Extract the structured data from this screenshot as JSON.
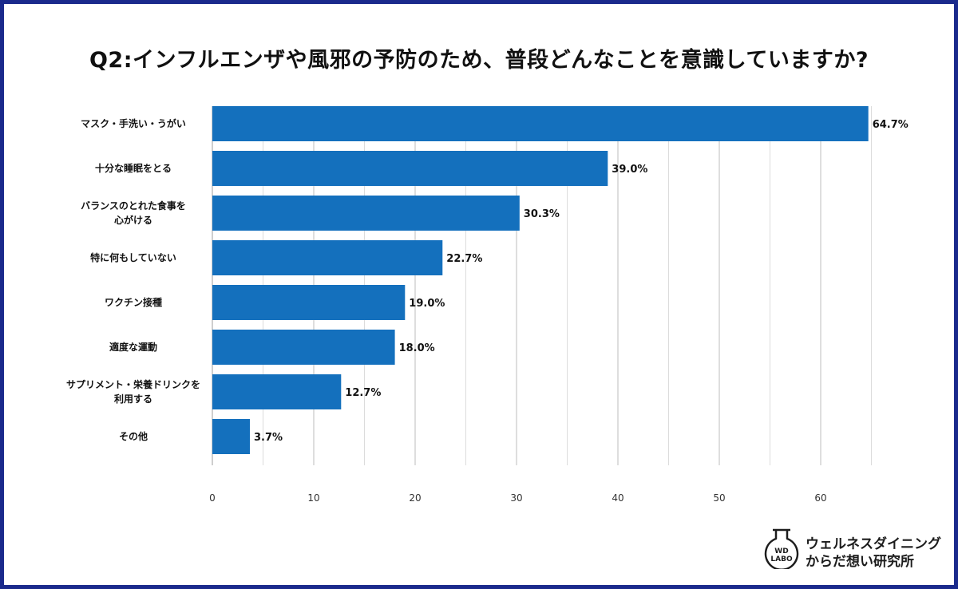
{
  "title": "Q2:インフルエンザや風邪の予防のため、普段どんなことを意識していますか?",
  "chart_data": {
    "type": "bar",
    "orientation": "horizontal",
    "categories": [
      [
        "マスク・手洗い・うがい"
      ],
      [
        "十分な睡眠をとる"
      ],
      [
        "バランスのとれた食事を",
        "心がける"
      ],
      [
        "特に何もしていない"
      ],
      [
        "ワクチン接種"
      ],
      [
        "適度な運動"
      ],
      [
        "サプリメント・栄養ドリンクを",
        "利用する"
      ],
      [
        "その他"
      ]
    ],
    "values": [
      64.7,
      39.0,
      30.3,
      22.7,
      19.0,
      18.0,
      12.7,
      3.7
    ],
    "value_labels": [
      "64.7%",
      "39.0%",
      "30.3%",
      "22.7%",
      "19.0%",
      "18.0%",
      "12.7%",
      "3.7%"
    ],
    "xlim": [
      0,
      65
    ],
    "xticks": [
      0,
      10,
      20,
      30,
      40,
      50,
      60
    ],
    "grid": true,
    "bar_color": "#1470bd"
  },
  "brand": {
    "logo_text": [
      "WD",
      "LABO"
    ],
    "line1": "ウェルネスダイニング",
    "line2": "からだ想い研究所"
  },
  "colors": {
    "frame": "#1a2a8c",
    "bar": "#1470bd",
    "grid": "#cfcfcf"
  }
}
